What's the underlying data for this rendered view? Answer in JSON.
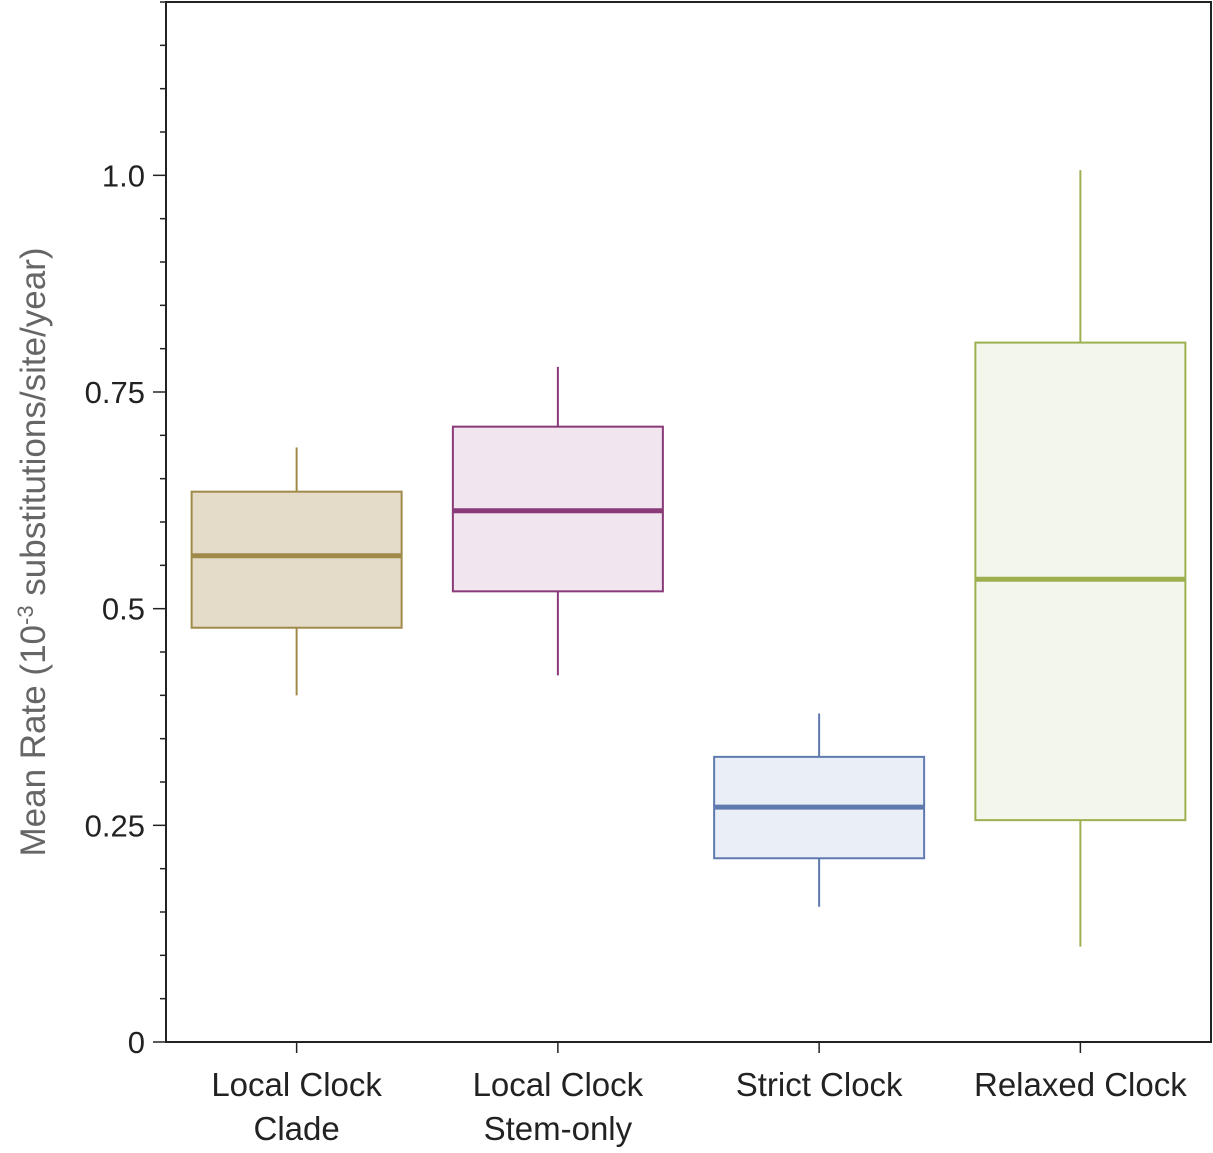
{
  "chart_data": {
    "type": "box",
    "title": "",
    "xlabel": "",
    "ylabel": {
      "text_before": "Mean Rate  (10",
      "superscript": "-3",
      "text_after": " substitutions/site/year)"
    },
    "ylim": [
      0,
      1.2
    ],
    "yticks": [
      {
        "value": 0,
        "label": "0"
      },
      {
        "value": 0.25,
        "label": "0.25"
      },
      {
        "value": 0.5,
        "label": "0.5"
      },
      {
        "value": 0.75,
        "label": "0.75"
      },
      {
        "value": 1.0,
        "label": "1.0"
      }
    ],
    "minor_tick_step": 0.05,
    "grid": false,
    "legend": "none",
    "boxes": [
      {
        "label_lines": [
          "Local Clock",
          "Clade"
        ],
        "whisker_low": 0.4,
        "q1": 0.478,
        "median": 0.561,
        "q3": 0.635,
        "whisker_high": 0.686,
        "color": "#a08a4a",
        "fill": "#e4dcc8"
      },
      {
        "label_lines": [
          "Local Clock",
          "Stem-only"
        ],
        "whisker_low": 0.423,
        "q1": 0.52,
        "median": 0.613,
        "q3": 0.71,
        "whisker_high": 0.779,
        "color": "#8a3a78",
        "fill": "#f1e6ef"
      },
      {
        "label_lines": [
          "Strict Clock"
        ],
        "whisker_low": 0.156,
        "q1": 0.212,
        "median": 0.271,
        "q3": 0.329,
        "whisker_high": 0.379,
        "color": "#5f7aae",
        "fill": "#eaeef6"
      },
      {
        "label_lines": [
          "Relaxed Clock"
        ],
        "whisker_low": 0.11,
        "q1": 0.256,
        "median": 0.534,
        "q3": 0.807,
        "whisker_high": 1.006,
        "color": "#9cb050",
        "fill": "#f3f6ea"
      }
    ]
  }
}
